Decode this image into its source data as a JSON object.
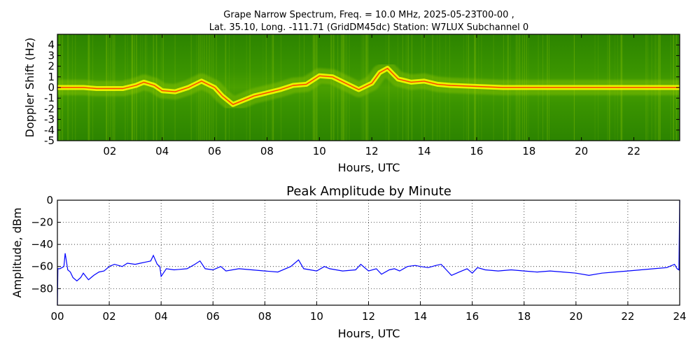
{
  "figure": {
    "title_line1": "Grape Narrow Spectrum, Freq. = 10.0 MHz, 2025-05-23T00-00 ,",
    "title_line2": "Lat.  35.10, Long. -111.71 (GridDM45dc) Station: W7LUX Subchannel 0"
  },
  "colors": {
    "spectrogram_background": "#1e7a00",
    "spectrogram_mid": "#9acd00",
    "spectrogram_peak": "#ffff00",
    "spectrogram_hot": "#ff2a00",
    "amplitude_line": "#0000ff"
  },
  "chart_data": [
    {
      "type": "heatmap",
      "title": "",
      "xlabel": "Hours, UTC",
      "ylabel": "Doppler Shift (Hz)",
      "xlim": [
        0,
        23.75
      ],
      "ylim": [
        -5,
        5
      ],
      "x_ticks": [
        "02",
        "04",
        "06",
        "08",
        "10",
        "12",
        "14",
        "16",
        "18",
        "20",
        "22"
      ],
      "x_tick_values": [
        2,
        4,
        6,
        8,
        10,
        12,
        14,
        16,
        18,
        20,
        22
      ],
      "y_ticks": [
        "-5",
        "-4",
        "-3",
        "-2",
        "-1",
        "0",
        "1",
        "2",
        "3",
        "4"
      ],
      "y_tick_values": [
        -5,
        -4,
        -3,
        -2,
        -1,
        0,
        1,
        2,
        3,
        4
      ],
      "peak_trace": {
        "hours": [
          0,
          0.5,
          1,
          1.5,
          2,
          2.5,
          3,
          3.3,
          3.7,
          4,
          4.5,
          5,
          5.5,
          6,
          6.3,
          6.7,
          7,
          7.5,
          8,
          8.5,
          9,
          9.5,
          10,
          10.5,
          11,
          11.5,
          12,
          12.3,
          12.6,
          13,
          13.5,
          14,
          14.5,
          15,
          16,
          17,
          18,
          19,
          20,
          21,
          22,
          23,
          23.75
        ],
        "doppler_hz": [
          0,
          0,
          0,
          -0.1,
          -0.1,
          -0.1,
          0.2,
          0.5,
          0.2,
          -0.3,
          -0.4,
          0,
          0.6,
          0,
          -0.8,
          -1.6,
          -1.3,
          -0.8,
          -0.5,
          -0.2,
          0.2,
          0.3,
          1.1,
          1.0,
          0.4,
          -0.2,
          0.4,
          1.4,
          1.8,
          0.8,
          0.5,
          0.6,
          0.3,
          0.2,
          0.1,
          0,
          0,
          0,
          0,
          0,
          0,
          0,
          0
        ]
      }
    },
    {
      "type": "line",
      "title": "Peak Amplitude by Minute",
      "xlabel": "Hours, UTC",
      "ylabel": "Amplitude, dBm",
      "xlim": [
        0,
        24
      ],
      "ylim": [
        -95,
        0
      ],
      "grid": true,
      "x_ticks": [
        "00",
        "02",
        "04",
        "06",
        "08",
        "10",
        "12",
        "14",
        "16",
        "18",
        "20",
        "22",
        "24"
      ],
      "x_tick_values": [
        0,
        2,
        4,
        6,
        8,
        10,
        12,
        14,
        16,
        18,
        20,
        22,
        24
      ],
      "y_ticks": [
        "0",
        "−20",
        "−40",
        "−60",
        "−80"
      ],
      "y_tick_values": [
        0,
        -20,
        -40,
        -60,
        -80
      ],
      "series": [
        {
          "x": [
            0,
            0.02,
            0.1,
            0.25,
            0.3,
            0.4,
            0.5,
            0.6,
            0.75,
            0.9,
            1,
            1.2,
            1.4,
            1.6,
            1.8,
            2,
            2.2,
            2.5,
            2.7,
            3,
            3.2,
            3.4,
            3.6,
            3.7,
            3.85,
            3.95,
            4,
            4.2,
            4.5,
            5,
            5.3,
            5.5,
            5.7,
            6,
            6.3,
            6.5,
            7,
            7.5,
            8,
            8.5,
            9,
            9.3,
            9.5,
            10,
            10.3,
            10.5,
            11,
            11.5,
            11.7,
            12,
            12.3,
            12.5,
            12.8,
            13,
            13.2,
            13.5,
            13.8,
            14,
            14.3,
            14.6,
            14.8,
            15,
            15.2,
            15.5,
            15.8,
            16,
            16.2,
            16.5,
            17,
            17.5,
            18,
            18.5,
            19,
            19.5,
            20,
            20.5,
            21,
            21.5,
            22,
            22.5,
            23,
            23.5,
            23.8,
            23.9,
            23.97,
            24
          ],
          "y": [
            -95,
            -62,
            -62,
            -60,
            -48,
            -63,
            -65,
            -70,
            -73,
            -70,
            -66,
            -72,
            -68,
            -65,
            -64,
            -60,
            -58,
            -60,
            -57,
            -58,
            -57,
            -56,
            -55,
            -50,
            -58,
            -60,
            -69,
            -62,
            -63,
            -62,
            -58,
            -55,
            -62,
            -63,
            -60,
            -64,
            -62,
            -63,
            -64,
            -65,
            -60,
            -54,
            -62,
            -64,
            -60,
            -62,
            -64,
            -63,
            -58,
            -64,
            -62,
            -67,
            -63,
            -62,
            -64,
            -60,
            -59,
            -60,
            -61,
            -59,
            -58,
            -63,
            -68,
            -65,
            -62,
            -66,
            -61,
            -63,
            -64,
            -63,
            -64,
            -65,
            -64,
            -65,
            -66,
            -68,
            -66,
            -65,
            -64,
            -63,
            -62,
            -61,
            -58,
            -62,
            -63,
            0
          ]
        }
      ]
    }
  ]
}
